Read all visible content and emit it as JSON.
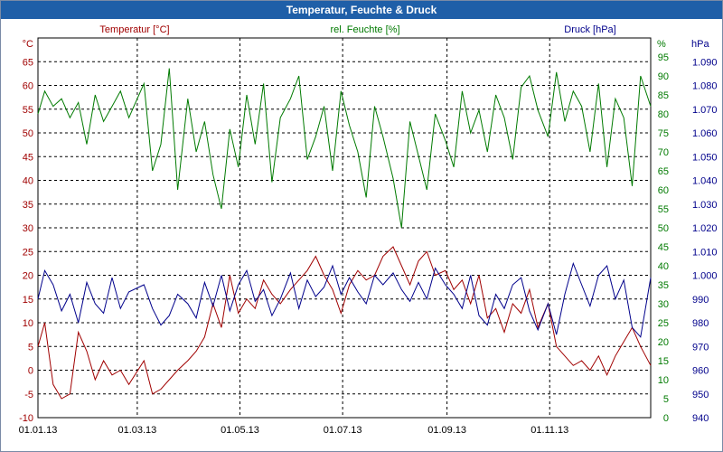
{
  "window": {
    "title": "Temperatur, Feuchte & Druck"
  },
  "colors": {
    "temperature": "#a00000",
    "humidity": "#007a00",
    "pressure": "#00008b",
    "grid": "#000000",
    "titlebar": "#1f5fa8"
  },
  "chart_data": {
    "type": "line",
    "grid": true,
    "x_range": [
      "2013-01-01",
      "2013-12-31"
    ],
    "x_ticks": [
      "01.01.13",
      "01.03.13",
      "01.05.13",
      "01.07.13",
      "01.09.13",
      "01.11.13"
    ],
    "x_tick_dates": [
      "2013-01-01",
      "2013-03-01",
      "2013-05-01",
      "2013-07-01",
      "2013-09-01",
      "2013-11-01"
    ],
    "axes": {
      "temperature": {
        "label": "Temperatur [°C]",
        "unit": "°C",
        "range": [
          -10,
          70
        ],
        "ticks": [
          "-10",
          "-5",
          "0",
          "5",
          "10",
          "15",
          "20",
          "25",
          "30",
          "35",
          "40",
          "45",
          "50",
          "55",
          "60",
          "65"
        ]
      },
      "humidity": {
        "label": "rel. Feuchte [%]",
        "unit": "%",
        "range": [
          0,
          100
        ],
        "ticks": [
          "0",
          "5",
          "10",
          "15",
          "20",
          "25",
          "30",
          "35",
          "40",
          "45",
          "50",
          "55",
          "60",
          "65",
          "70",
          "75",
          "80",
          "85",
          "90",
          "95"
        ]
      },
      "pressure": {
        "label": "Druck [hPa]",
        "unit": "hPa",
        "range": [
          940,
          1100
        ],
        "ticks": [
          "940",
          "950",
          "960",
          "970",
          "980",
          "990",
          "1.000",
          "1.010",
          "1.020",
          "1.030",
          "1.040",
          "1.050",
          "1.060",
          "1.070",
          "1.080",
          "1.090"
        ]
      }
    },
    "series": [
      {
        "name": "Temperatur [°C]",
        "axis": "temperature",
        "dates": [
          "2013-01-01",
          "2013-01-05",
          "2013-01-10",
          "2013-01-15",
          "2013-01-20",
          "2013-01-25",
          "2013-01-30",
          "2013-02-04",
          "2013-02-09",
          "2013-02-14",
          "2013-02-19",
          "2013-02-24",
          "2013-03-05",
          "2013-03-10",
          "2013-03-15",
          "2013-03-20",
          "2013-03-25",
          "2013-03-31",
          "2013-04-05",
          "2013-04-10",
          "2013-04-15",
          "2013-04-20",
          "2013-04-25",
          "2013-04-30",
          "2013-05-05",
          "2013-05-10",
          "2013-05-15",
          "2013-05-20",
          "2013-05-25",
          "2013-05-31",
          "2013-06-05",
          "2013-06-10",
          "2013-06-15",
          "2013-06-20",
          "2013-06-25",
          "2013-06-30",
          "2013-07-05",
          "2013-07-10",
          "2013-07-15",
          "2013-07-20",
          "2013-07-25",
          "2013-07-31",
          "2013-08-05",
          "2013-08-10",
          "2013-08-15",
          "2013-08-20",
          "2013-08-25",
          "2013-08-31",
          "2013-09-05",
          "2013-09-10",
          "2013-09-15",
          "2013-09-20",
          "2013-09-25",
          "2013-09-30",
          "2013-10-05",
          "2013-10-10",
          "2013-10-15",
          "2013-10-20",
          "2013-10-25",
          "2013-10-31",
          "2013-11-05",
          "2013-11-10",
          "2013-11-15",
          "2013-11-20",
          "2013-11-25",
          "2013-11-30",
          "2013-12-05",
          "2013-12-10",
          "2013-12-15",
          "2013-12-20",
          "2013-12-25",
          "2013-12-31"
        ],
        "values": [
          5,
          10,
          -3,
          -6,
          -5,
          8,
          4,
          -2,
          2,
          -1,
          0,
          -3,
          2,
          -5,
          -4,
          -2,
          0,
          2,
          4,
          7,
          14,
          9,
          20,
          12,
          15,
          13,
          19,
          16,
          14,
          17,
          19,
          21,
          24,
          20,
          17,
          12,
          18,
          21,
          19,
          20,
          24,
          26,
          22,
          18,
          23,
          25,
          20,
          21,
          17,
          19,
          14,
          20,
          11,
          13,
          8,
          14,
          12,
          17,
          9,
          14,
          5,
          3,
          1,
          2,
          0,
          3,
          -1,
          3,
          6,
          9,
          5,
          1
        ]
      },
      {
        "name": "rel. Feuchte [%]",
        "axis": "humidity",
        "dates": [
          "2013-01-01",
          "2013-01-05",
          "2013-01-10",
          "2013-01-15",
          "2013-01-20",
          "2013-01-25",
          "2013-01-30",
          "2013-02-04",
          "2013-02-09",
          "2013-02-14",
          "2013-02-19",
          "2013-02-24",
          "2013-03-05",
          "2013-03-10",
          "2013-03-15",
          "2013-03-20",
          "2013-03-25",
          "2013-03-31",
          "2013-04-05",
          "2013-04-10",
          "2013-04-15",
          "2013-04-20",
          "2013-04-25",
          "2013-04-30",
          "2013-05-05",
          "2013-05-10",
          "2013-05-15",
          "2013-05-20",
          "2013-05-25",
          "2013-05-31",
          "2013-06-05",
          "2013-06-10",
          "2013-06-15",
          "2013-06-20",
          "2013-06-25",
          "2013-06-30",
          "2013-07-05",
          "2013-07-10",
          "2013-07-15",
          "2013-07-20",
          "2013-07-25",
          "2013-07-31",
          "2013-08-05",
          "2013-08-10",
          "2013-08-15",
          "2013-08-20",
          "2013-08-25",
          "2013-08-31",
          "2013-09-05",
          "2013-09-10",
          "2013-09-15",
          "2013-09-20",
          "2013-09-25",
          "2013-09-30",
          "2013-10-05",
          "2013-10-10",
          "2013-10-15",
          "2013-10-20",
          "2013-10-25",
          "2013-10-31",
          "2013-11-05",
          "2013-11-10",
          "2013-11-15",
          "2013-11-20",
          "2013-11-25",
          "2013-11-30",
          "2013-12-05",
          "2013-12-10",
          "2013-12-15",
          "2013-12-20",
          "2013-12-25",
          "2013-12-31"
        ],
        "values": [
          80,
          86,
          82,
          84,
          79,
          83,
          72,
          85,
          78,
          82,
          86,
          79,
          88,
          65,
          72,
          92,
          60,
          84,
          70,
          78,
          64,
          55,
          76,
          66,
          85,
          72,
          88,
          62,
          79,
          84,
          90,
          68,
          74,
          82,
          65,
          86,
          77,
          70,
          58,
          82,
          74,
          63,
          50,
          78,
          69,
          60,
          80,
          73,
          66,
          86,
          75,
          81,
          70,
          85,
          79,
          68,
          87,
          90,
          81,
          74,
          91,
          78,
          86,
          82,
          70,
          88,
          66,
          84,
          79,
          61,
          90,
          82
        ]
      },
      {
        "name": "Druck [hPa]",
        "axis": "pressure",
        "dates": [
          "2013-01-01",
          "2013-01-05",
          "2013-01-10",
          "2013-01-15",
          "2013-01-20",
          "2013-01-25",
          "2013-01-30",
          "2013-02-04",
          "2013-02-09",
          "2013-02-14",
          "2013-02-19",
          "2013-02-24",
          "2013-03-05",
          "2013-03-10",
          "2013-03-15",
          "2013-03-20",
          "2013-03-25",
          "2013-03-31",
          "2013-04-05",
          "2013-04-10",
          "2013-04-15",
          "2013-04-20",
          "2013-04-25",
          "2013-04-30",
          "2013-05-05",
          "2013-05-10",
          "2013-05-15",
          "2013-05-20",
          "2013-05-25",
          "2013-05-31",
          "2013-06-05",
          "2013-06-10",
          "2013-06-15",
          "2013-06-20",
          "2013-06-25",
          "2013-06-30",
          "2013-07-05",
          "2013-07-10",
          "2013-07-15",
          "2013-07-20",
          "2013-07-25",
          "2013-07-31",
          "2013-08-05",
          "2013-08-10",
          "2013-08-15",
          "2013-08-20",
          "2013-08-25",
          "2013-08-31",
          "2013-09-05",
          "2013-09-10",
          "2013-09-15",
          "2013-09-20",
          "2013-09-25",
          "2013-09-30",
          "2013-10-05",
          "2013-10-10",
          "2013-10-15",
          "2013-10-20",
          "2013-10-25",
          "2013-10-31",
          "2013-11-05",
          "2013-11-10",
          "2013-11-15",
          "2013-11-20",
          "2013-11-25",
          "2013-11-30",
          "2013-12-05",
          "2013-12-10",
          "2013-12-15",
          "2013-12-20",
          "2013-12-25",
          "2013-12-31"
        ],
        "values": [
          990,
          1002,
          996,
          985,
          992,
          980,
          997,
          988,
          984,
          999,
          986,
          993,
          996,
          986,
          979,
          983,
          992,
          988,
          982,
          997,
          987,
          1000,
          985,
          996,
          1002,
          989,
          994,
          983,
          990,
          1001,
          986,
          998,
          991,
          995,
          1004,
          992,
          999,
          993,
          988,
          1000,
          996,
          1001,
          994,
          989,
          997,
          990,
          1003,
          996,
          992,
          986,
          1000,
          983,
          979,
          992,
          986,
          996,
          999,
          985,
          977,
          988,
          975,
          992,
          1005,
          996,
          987,
          1000,
          1004,
          990,
          998,
          978,
          974,
          999
        ]
      }
    ]
  }
}
